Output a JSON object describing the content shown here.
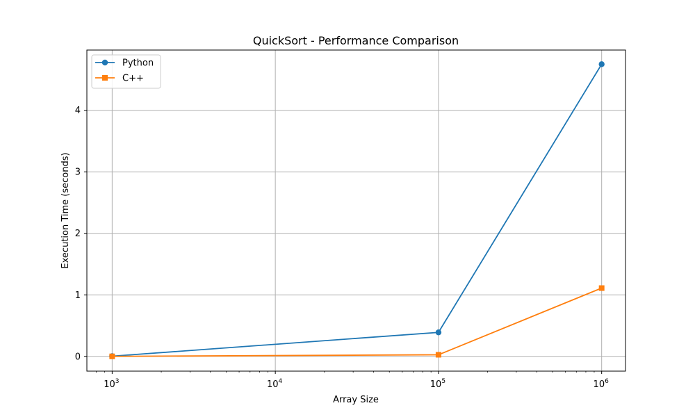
{
  "chart_data": {
    "type": "line",
    "title": "QuickSort - Performance Comparison",
    "xlabel": "Array Size",
    "ylabel": "Execution Time (seconds)",
    "x_scale": "log",
    "xlim": [
      700,
      1400000
    ],
    "ylim": [
      -0.24,
      4.98
    ],
    "grid": true,
    "legend_position": "top-left",
    "x": [
      1000,
      100000,
      1000000
    ],
    "x_ticks": [
      {
        "value": 1000,
        "base": "10",
        "exp": "3"
      },
      {
        "value": 10000,
        "base": "10",
        "exp": "4"
      },
      {
        "value": 100000,
        "base": "10",
        "exp": "5"
      },
      {
        "value": 1000000,
        "base": "10",
        "exp": "6"
      }
    ],
    "y_ticks": [
      0,
      1,
      2,
      3,
      4
    ],
    "series": [
      {
        "name": "Python",
        "color": "#1f77b4",
        "marker": "circle",
        "values": [
          0.003,
          0.39,
          4.75
        ]
      },
      {
        "name": "C++",
        "color": "#ff7f0e",
        "marker": "square",
        "values": [
          0.0002,
          0.026,
          1.11
        ]
      }
    ]
  }
}
